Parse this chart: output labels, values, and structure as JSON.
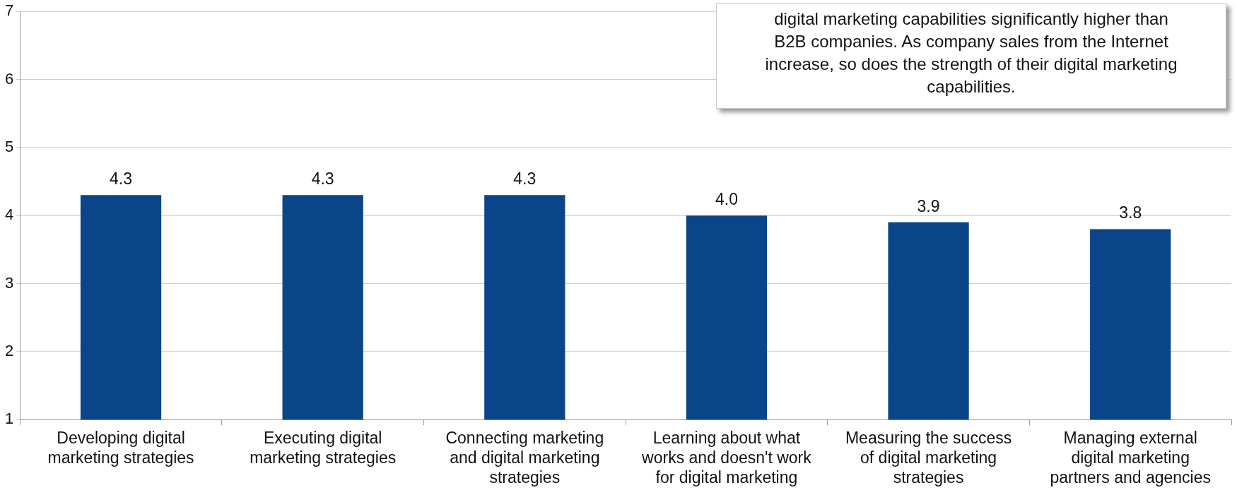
{
  "chart_data": {
    "type": "bar",
    "categories": [
      "Developing digital marketing strategies",
      "Executing digital marketing strategies",
      "Connecting marketing and digital marketing strategies",
      "Learning about what works and doesn't work for digital marketing",
      "Measuring the success of digital marketing strategies",
      "Managing external digital marketing partners and agencies"
    ],
    "values": [
      4.3,
      4.3,
      4.3,
      4.0,
      3.9,
      3.8
    ],
    "value_labels": [
      "4.3",
      "4.3",
      "4.3",
      "4.0",
      "3.9",
      "3.8"
    ],
    "color": "#0b4589",
    "ylim": [
      1,
      7
    ],
    "yticks": [
      1,
      2,
      3,
      4,
      5,
      6,
      7
    ],
    "grid": "y",
    "legend": false,
    "annotations": [
      "digital marketing capabilities significantly higher than B2B companies. As company sales from the Internet increase, so does the strength of their digital marketing capabilities."
    ]
  }
}
